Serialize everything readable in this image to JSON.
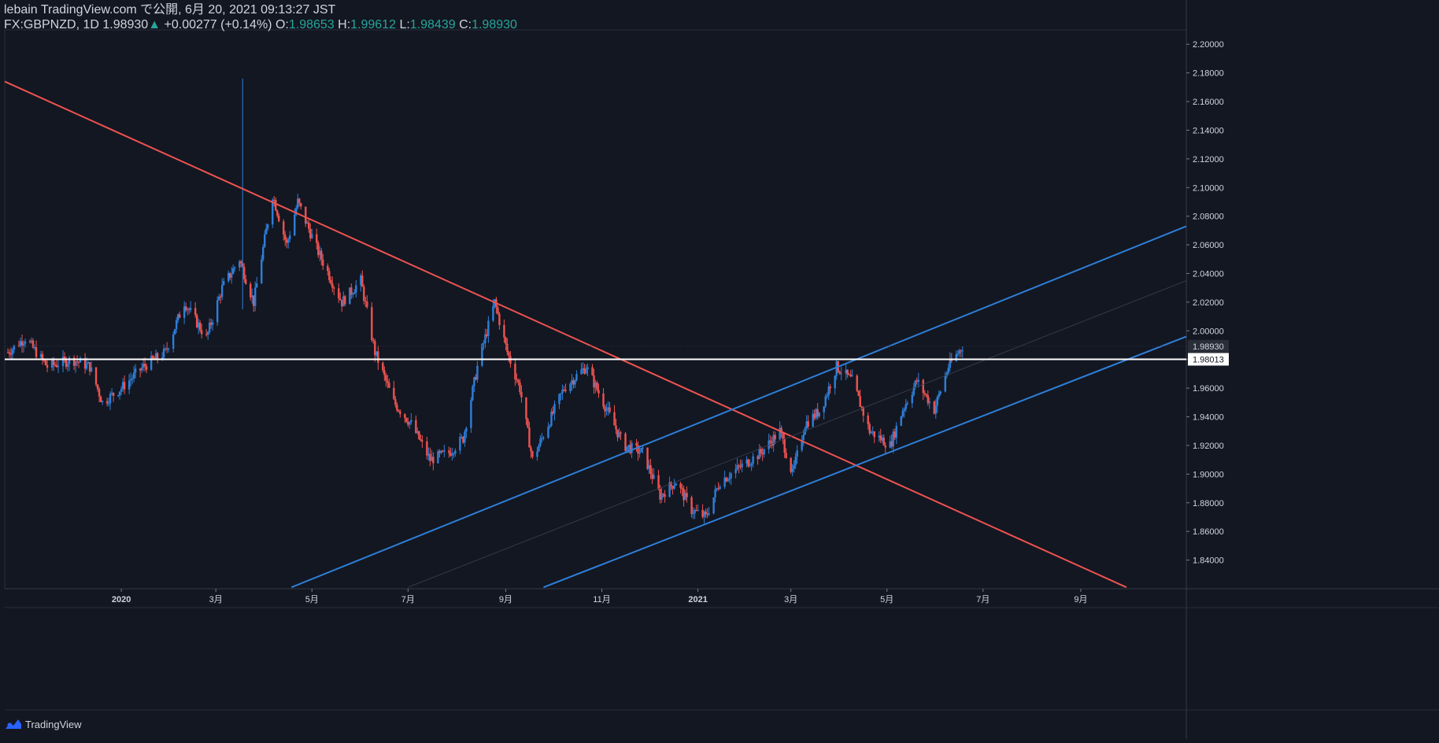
{
  "header": {
    "publisher_line": "lebain TradingView.com で公開, 6月 20, 2021 09:13:27 JST",
    "symbol": "FX:GBPNZD, 1D",
    "last": "1.98930",
    "change_arrow": "▲",
    "change": "+0.00277 (+0.14%)",
    "o_label": "O:",
    "o_value": "1.98653",
    "h_label": "H:",
    "h_value": "1.99612",
    "l_label": "L:",
    "l_value": "1.98439",
    "c_label": "C:",
    "c_value": "1.98930"
  },
  "footer": {
    "brand": "TradingView",
    "logo_icon": "tradingview-logo-icon"
  },
  "colors": {
    "background": "#131722",
    "up": "#2e7fd8",
    "down": "#ef5350",
    "trend_red": "#ef5350",
    "trend_blue": "#2e7fd8",
    "hline": "#ffffff",
    "text": "#d1d4dc"
  },
  "chart_data": {
    "type": "candlestick",
    "symbol": "FX:GBPNZD",
    "interval": "1D",
    "ylim": [
      1.82,
      2.21
    ],
    "y_ticks": [
      "2.20000",
      "2.18000",
      "2.16000",
      "2.14000",
      "2.12000",
      "2.10000",
      "2.08000",
      "2.06000",
      "2.04000",
      "2.02000",
      "2.00000",
      "1.98000",
      "1.96000",
      "1.94000",
      "1.92000",
      "1.90000",
      "1.88000",
      "1.86000",
      "1.84000"
    ],
    "x_ticks": [
      {
        "label": "2020",
        "date": "2020-01-01",
        "bold": true
      },
      {
        "label": "3月",
        "date": "2020-03-01"
      },
      {
        "label": "5月",
        "date": "2020-05-01"
      },
      {
        "label": "7月",
        "date": "2020-07-01"
      },
      {
        "label": "9月",
        "date": "2020-09-01"
      },
      {
        "label": "11月",
        "date": "2020-11-01"
      },
      {
        "label": "2021",
        "date": "2021-01-01",
        "bold": true
      },
      {
        "label": "3月",
        "date": "2021-03-01"
      },
      {
        "label": "5月",
        "date": "2021-05-01"
      },
      {
        "label": "7月",
        "date": "2021-07-01"
      },
      {
        "label": "9月",
        "date": "2021-09-01"
      }
    ],
    "x_range": [
      "2019-10-19",
      "2021-11-07"
    ],
    "price_labels": [
      {
        "value": "1.98930",
        "price": 1.9893,
        "style": "last"
      },
      {
        "value": "1.98013",
        "price": 1.98013,
        "style": "line"
      }
    ],
    "horizontal_line": {
      "price": 1.98013
    },
    "trendlines": [
      {
        "color": "red",
        "from": {
          "date": "2019-10-19",
          "price": 2.174
        },
        "to": {
          "date": "2021-09-30",
          "price": 1.821
        }
      },
      {
        "color": "blue",
        "from": {
          "date": "2020-04-18",
          "price": 1.821
        },
        "to": {
          "date": "2021-11-07",
          "price": 2.073
        }
      },
      {
        "color": "blue",
        "from": {
          "date": "2020-09-25",
          "price": 1.821
        },
        "to": {
          "date": "2021-11-07",
          "price": 1.996
        }
      },
      {
        "color": "faint",
        "from": {
          "date": "2020-07-01",
          "price": 1.821
        },
        "to": {
          "date": "2021-11-07",
          "price": 2.035
        }
      }
    ],
    "price_path": [
      [
        "2019-10-21",
        1.985
      ],
      [
        "2019-11-01",
        1.995
      ],
      [
        "2019-11-15",
        1.975
      ],
      [
        "2019-12-01",
        1.98
      ],
      [
        "2019-12-12",
        1.975
      ],
      [
        "2019-12-20",
        1.95
      ],
      [
        "2020-01-01",
        1.96
      ],
      [
        "2020-01-15",
        1.975
      ],
      [
        "2020-01-29",
        1.985
      ],
      [
        "2020-02-10",
        2.02
      ],
      [
        "2020-02-24",
        1.995
      ],
      [
        "2020-03-05",
        2.03
      ],
      [
        "2020-03-16",
        2.05
      ],
      [
        "2020-03-25",
        2.02
      ],
      [
        "2020-04-06",
        2.095
      ],
      [
        "2020-04-15",
        2.06
      ],
      [
        "2020-04-22",
        2.09
      ],
      [
        "2020-05-05",
        2.055
      ],
      [
        "2020-05-20",
        2.02
      ],
      [
        "2020-06-01",
        2.035
      ],
      [
        "2020-06-10",
        1.985
      ],
      [
        "2020-06-22",
        1.95
      ],
      [
        "2020-07-03",
        1.935
      ],
      [
        "2020-07-15",
        1.91
      ],
      [
        "2020-07-27",
        1.915
      ],
      [
        "2020-08-05",
        1.925
      ],
      [
        "2020-08-14",
        1.975
      ],
      [
        "2020-08-25",
        2.02
      ],
      [
        "2020-09-02",
        1.985
      ],
      [
        "2020-09-10",
        1.96
      ],
      [
        "2020-09-18",
        1.91
      ],
      [
        "2020-09-28",
        1.935
      ],
      [
        "2020-10-08",
        1.96
      ],
      [
        "2020-10-22",
        1.975
      ],
      [
        "2020-11-02",
        1.95
      ],
      [
        "2020-11-15",
        1.92
      ],
      [
        "2020-11-27",
        1.915
      ],
      [
        "2020-12-08",
        1.885
      ],
      [
        "2020-12-18",
        1.895
      ],
      [
        "2020-12-28",
        1.875
      ],
      [
        "2021-01-06",
        1.87
      ],
      [
        "2021-01-15",
        1.895
      ],
      [
        "2021-01-28",
        1.905
      ],
      [
        "2021-02-10",
        1.915
      ],
      [
        "2021-02-22",
        1.93
      ],
      [
        "2021-03-02",
        1.9
      ],
      [
        "2021-03-10",
        1.935
      ],
      [
        "2021-03-20",
        1.945
      ],
      [
        "2021-03-30",
        1.975
      ],
      [
        "2021-04-09",
        1.965
      ],
      [
        "2021-04-20",
        1.93
      ],
      [
        "2021-05-03",
        1.92
      ],
      [
        "2021-05-11",
        1.945
      ],
      [
        "2021-05-20",
        1.965
      ],
      [
        "2021-05-31",
        1.945
      ],
      [
        "2021-06-09",
        1.975
      ],
      [
        "2021-06-18",
        1.9893
      ]
    ],
    "spikes": [
      {
        "date": "2020-03-18",
        "high": 2.176,
        "low": 2.015
      }
    ]
  }
}
